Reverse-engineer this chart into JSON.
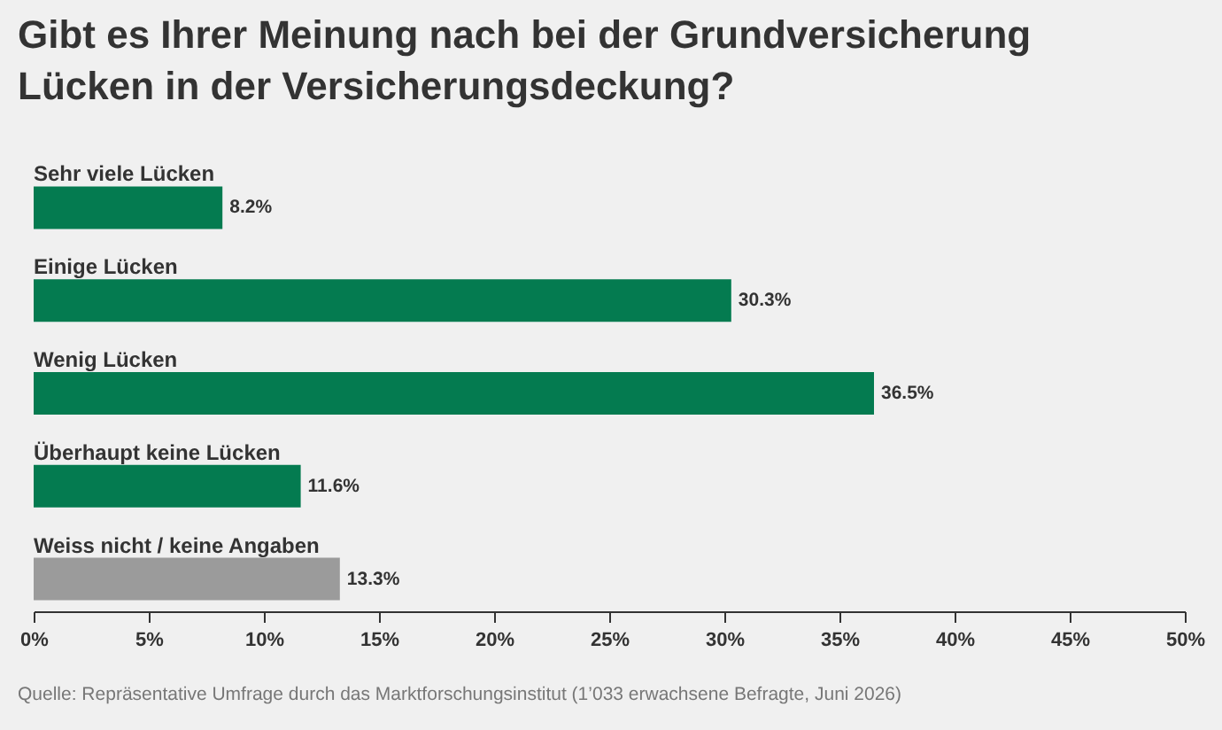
{
  "chart_data": {
    "type": "bar",
    "orientation": "horizontal",
    "title": "Gibt es Ihrer Meinung nach bei der Grundversicherung Lücken in der Versicherungsdeckung?",
    "categories": [
      "Sehr viele Lücken",
      "Einige Lücken",
      "Wenig Lücken",
      "Überhaupt keine Lücken",
      "Weiss nicht / keine Angaben"
    ],
    "values": [
      8.2,
      30.3,
      36.5,
      11.6,
      13.3
    ],
    "colors": [
      "#047b50",
      "#047b50",
      "#047b50",
      "#047b50",
      "#9b9b9b"
    ],
    "value_labels": [
      "8.2%",
      "30.3%",
      "36.5%",
      "11.6%",
      "13.3%"
    ],
    "xlim": [
      0,
      50
    ],
    "xticks": [
      {
        "value": 0,
        "label": "0%"
      },
      {
        "value": 5,
        "label": "5%"
      },
      {
        "value": 10,
        "label": "10%"
      },
      {
        "value": 15,
        "label": "15%"
      },
      {
        "value": 20,
        "label": "20%"
      },
      {
        "value": 25,
        "label": "25%"
      },
      {
        "value": 30,
        "label": "30%"
      },
      {
        "value": 35,
        "label": "35%"
      },
      {
        "value": 40,
        "label": "40%"
      },
      {
        "value": 45,
        "label": "45%"
      },
      {
        "value": 50,
        "label": "50%"
      }
    ],
    "annotations": [
      "Quelle: Repräsentative Umfrage durch das Marktforschungsinstitut (1’033 erwachsene Befragte, Juni 2026)"
    ]
  }
}
